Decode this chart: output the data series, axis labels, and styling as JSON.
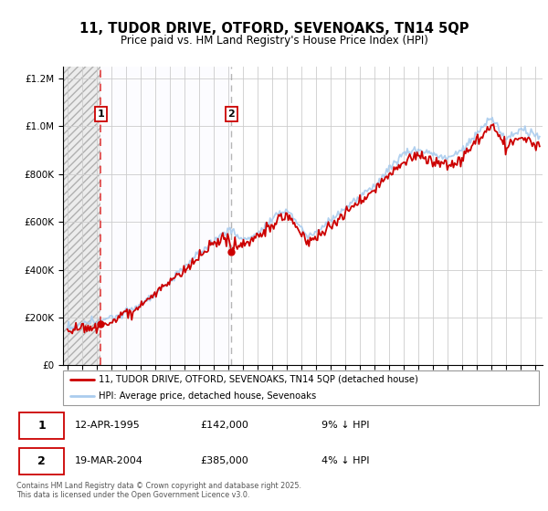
{
  "title_line1": "11, TUDOR DRIVE, OTFORD, SEVENOAKS, TN14 5QP",
  "title_line2": "Price paid vs. HM Land Registry's House Price Index (HPI)",
  "legend_label1": "11, TUDOR DRIVE, OTFORD, SEVENOAKS, TN14 5QP (detached house)",
  "legend_label2": "HPI: Average price, detached house, Sevenoaks",
  "sale1_date": "12-APR-1995",
  "sale1_price": "£142,000",
  "sale1_hpi": "9% ↓ HPI",
  "sale2_date": "19-MAR-2004",
  "sale2_price": "£385,000",
  "sale2_hpi": "4% ↓ HPI",
  "footer": "Contains HM Land Registry data © Crown copyright and database right 2025.\nThis data is licensed under the Open Government Licence v3.0.",
  "color_sale": "#cc0000",
  "color_hpi": "#aaccee",
  "sale1_year": 1995.28,
  "sale2_year": 2004.22,
  "sale1_price_val": 142000,
  "sale2_price_val": 385000,
  "ylim": [
    0,
    1250000
  ],
  "xlim_start": 1992.7,
  "xlim_end": 2025.5,
  "xtick_start": 1993,
  "xtick_end": 2025
}
